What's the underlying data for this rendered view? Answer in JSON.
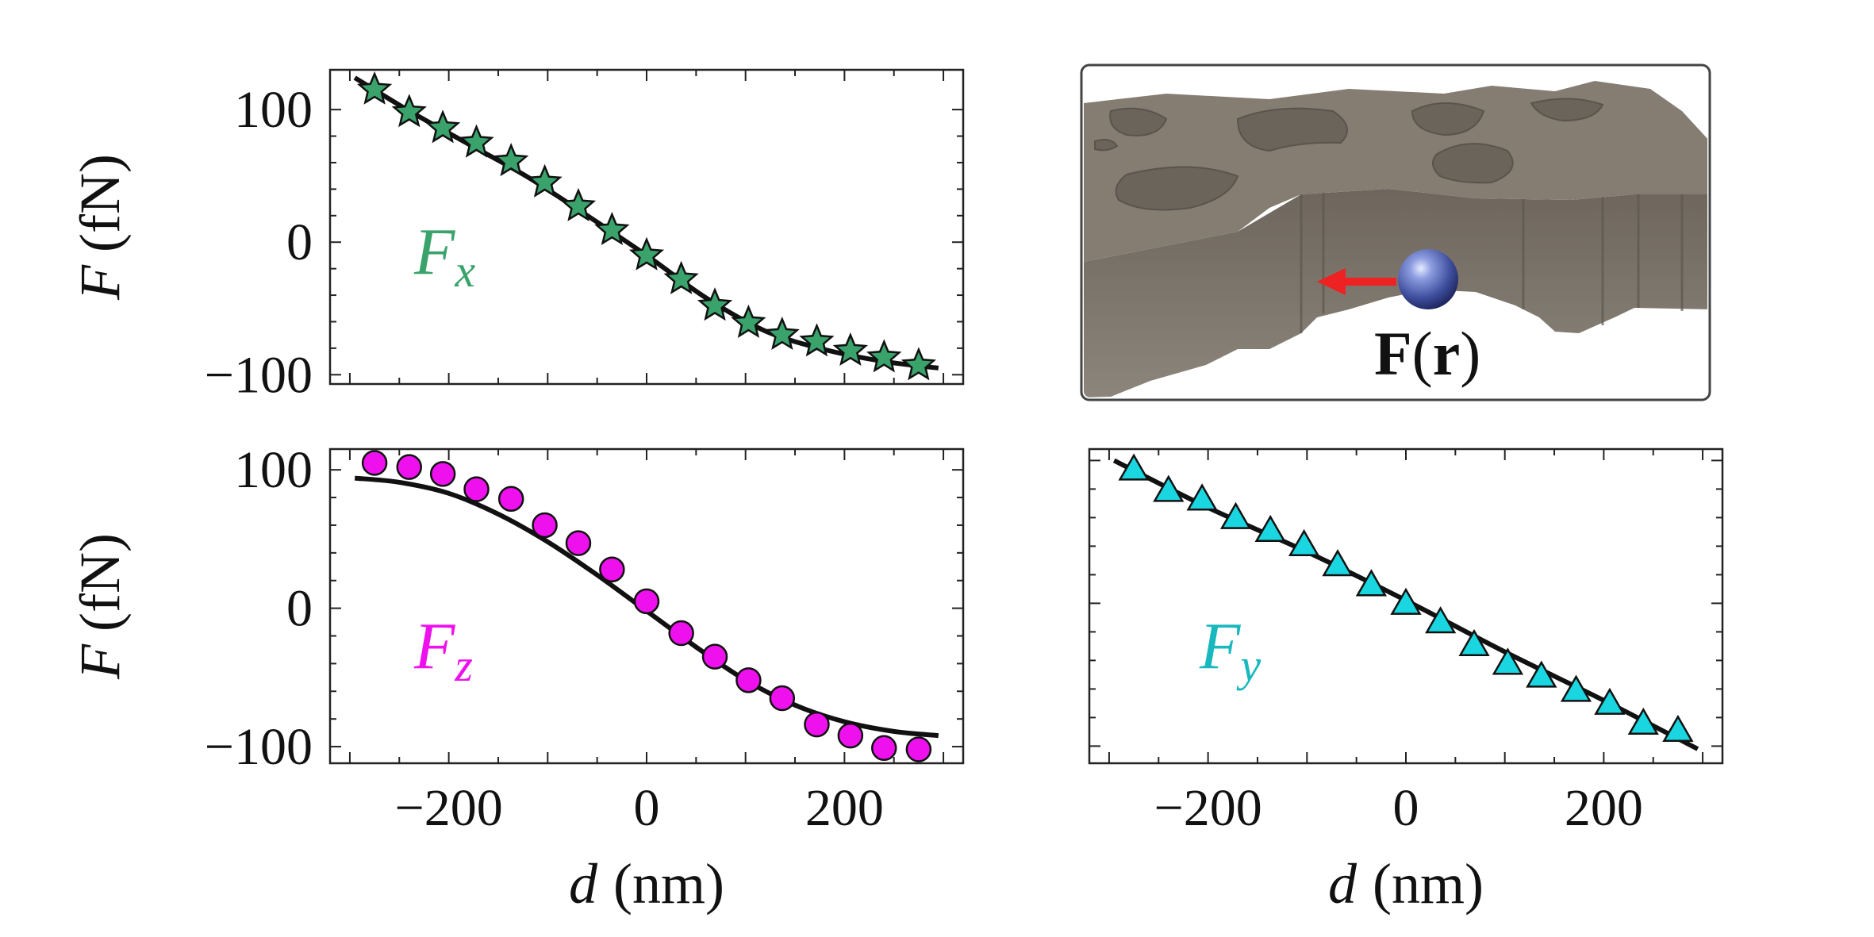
{
  "chart_data": [
    {
      "type": "scatter",
      "panel": "top-left",
      "ylabel_italic": "F",
      "ylabel_unit": "(fN)",
      "xlim": [
        -320,
        320
      ],
      "ylim": [
        -107,
        130
      ],
      "yticks": [
        100,
        0,
        -100
      ],
      "ytick_labels": [
        "100",
        "0",
        "−100"
      ],
      "xticks": [],
      "xtick_labels": [],
      "series": [
        {
          "name": "F",
          "sub": "x",
          "marker": "star",
          "color": "#3aa36b",
          "x": [
            -275,
            -240,
            -206,
            -172,
            -137,
            -103,
            -69,
            -35,
            0,
            35,
            69,
            103,
            137,
            172,
            206,
            240,
            275
          ],
          "y": [
            115,
            98,
            86,
            75,
            61,
            45,
            27,
            9,
            -10,
            -28,
            -48,
            -61,
            -70,
            -75,
            -82,
            -87,
            -93
          ]
        }
      ],
      "fit": {
        "x": [
          -295,
          -240,
          -180,
          -120,
          -60,
          0,
          60,
          120,
          180,
          240,
          295
        ],
        "y": [
          124,
          99,
          74,
          49,
          20,
          -10,
          -42,
          -67,
          -81,
          -90,
          -95
        ]
      }
    },
    {
      "type": "scatter",
      "panel": "bottom-left",
      "ylabel_italic": "F",
      "ylabel_unit": "(fN)",
      "xlabel_italic": "d",
      "xlabel_unit": "(nm)",
      "xlim": [
        -320,
        320
      ],
      "ylim": [
        -112,
        115
      ],
      "yticks": [
        100,
        0,
        -100
      ],
      "ytick_labels": [
        "100",
        "0",
        "−100"
      ],
      "xticks": [
        -200,
        0,
        200
      ],
      "xtick_labels": [
        "−200",
        "0",
        "200"
      ],
      "series": [
        {
          "name": "F",
          "sub": "z",
          "marker": "circle",
          "color": "#ee11ee",
          "x": [
            -275,
            -240,
            -206,
            -172,
            -137,
            -103,
            -69,
            -35,
            0,
            35,
            69,
            103,
            137,
            172,
            206,
            240,
            275
          ],
          "y": [
            105,
            102,
            97,
            86,
            79,
            60,
            47,
            28,
            5,
            -18,
            -35,
            -52,
            -65,
            -84,
            -92,
            -101,
            -102
          ]
        }
      ],
      "fit": {
        "x": [
          -295,
          -250,
          -200,
          -150,
          -100,
          -50,
          0,
          50,
          100,
          150,
          200,
          250,
          295
        ],
        "y": [
          94,
          91,
          83,
          68,
          48,
          24,
          -2,
          -28,
          -52,
          -70,
          -82,
          -89,
          -92
        ]
      }
    },
    {
      "type": "scatter",
      "panel": "bottom-right",
      "xlabel_italic": "d",
      "xlabel_unit": "(nm)",
      "xlim": [
        -320,
        320
      ],
      "ylim": [
        -112,
        108
      ],
      "yticks": [],
      "ytick_labels": [],
      "xticks": [
        -200,
        0,
        200
      ],
      "xtick_labels": [
        "−200",
        "0",
        "200"
      ],
      "series": [
        {
          "name": "F",
          "sub": "y",
          "marker": "triangle",
          "color": "#1ad6e0",
          "x": [
            -275,
            -240,
            -206,
            -172,
            -137,
            -103,
            -69,
            -35,
            0,
            35,
            69,
            103,
            137,
            172,
            206,
            240,
            275
          ],
          "y": [
            93,
            78,
            72,
            59,
            50,
            40,
            26,
            12,
            -1,
            -14,
            -30,
            -43,
            -52,
            -62,
            -71,
            -85,
            -90
          ]
        }
      ],
      "fit": {
        "x": [
          -295,
          -200,
          -100,
          0,
          100,
          200,
          295
        ],
        "y": [
          100,
          67,
          36,
          2,
          -34,
          -68,
          -102
        ]
      }
    }
  ],
  "illustration": {
    "force_label": "F",
    "force_arg": "r",
    "colors": {
      "surface": "#837a6e",
      "arrow": "#ee2222",
      "particle": "#4a5cb0"
    }
  }
}
